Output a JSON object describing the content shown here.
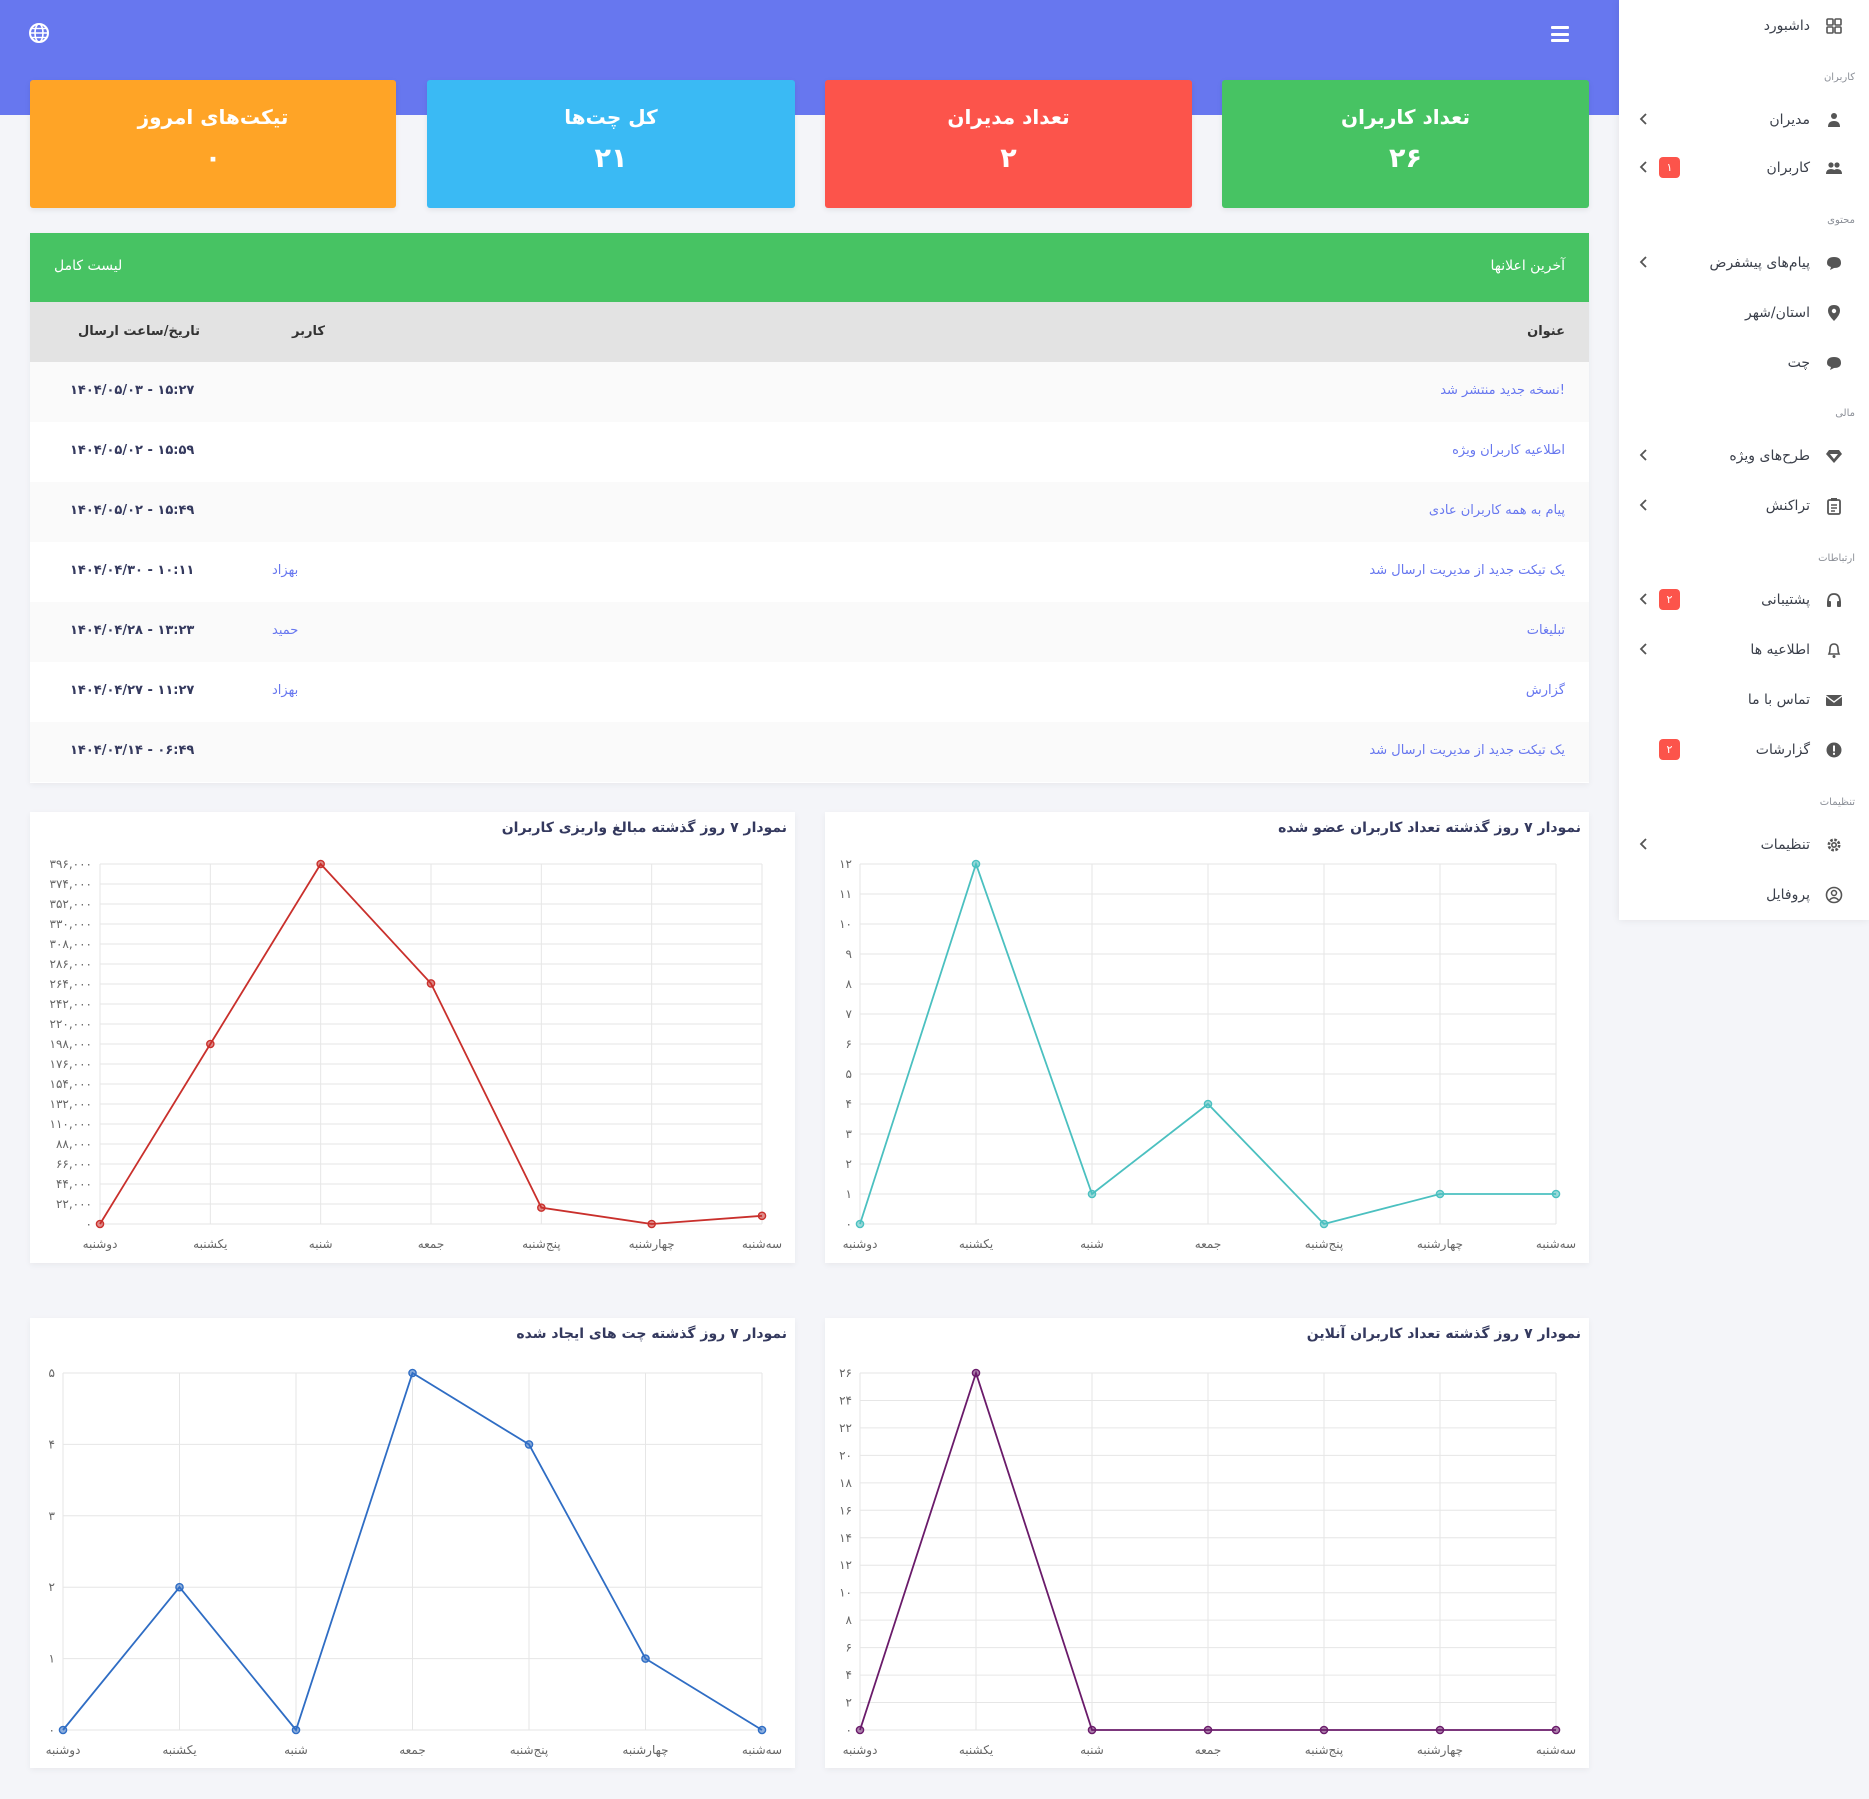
{
  "cards": [
    {
      "title": "تیکت‌های امروز",
      "value": "۰"
    },
    {
      "title": "کل چت‌ها",
      "value": "۲۱"
    },
    {
      "title": "تعداد مدیران",
      "value": "۲"
    },
    {
      "title": "تعداد کاربران",
      "value": "۲۶"
    }
  ],
  "announcements": {
    "title": "آخرین اعلانها",
    "full_list_label": "لیست کامل",
    "columns": {
      "title": "عنوان",
      "user": "کاربر",
      "date": "تاریخ/ساعت ارسال"
    },
    "rows": [
      {
        "title": "نسخه جدید منتشر شد!",
        "user": "",
        "date": "۱۴۰۴/۰۵/۰۳ - ۱۵:۲۷"
      },
      {
        "title": "اطلاعیه کاربران ویژه",
        "user": "",
        "date": "۱۴۰۴/۰۵/۰۲ - ۱۵:۵۹"
      },
      {
        "title": "پیام به همه کاربران عادی",
        "user": "",
        "date": "۱۴۰۴/۰۵/۰۲ - ۱۵:۴۹"
      },
      {
        "title": "یک تیکت جدید از مدیریت ارسال شد",
        "user": "بهزاد",
        "date": "۱۴۰۴/۰۴/۳۰ - ۱۰:۱۱"
      },
      {
        "title": "تبلیغات",
        "user": "حمید",
        "date": "۱۴۰۴/۰۴/۲۸ - ۱۳:۲۳"
      },
      {
        "title": "گزارش",
        "user": "بهزاد",
        "date": "۱۴۰۴/۰۴/۲۷ - ۱۱:۲۷"
      },
      {
        "title": "یک تیکت جدید از مدیریت ارسال شد",
        "user": "",
        "date": "۱۴۰۴/۰۳/۱۴ - ۰۶:۴۹"
      }
    ]
  },
  "chart_data": [
    {
      "type": "line",
      "title": "نمودار ۷ روز گذشته مبالغ واریزی کاربران",
      "categories": [
        "دوشنبه",
        "یکشنبه",
        "شنبه",
        "جمعه",
        "پنج‌شنبه",
        "چهارشنبه",
        "سه‌شنبه"
      ],
      "values": [
        0,
        220000,
        440000,
        294000,
        20000,
        0,
        10000
      ],
      "y_ticks": [
        "۰",
        "۲۲,۰۰۰",
        "۴۴,۰۰۰",
        "۶۶,۰۰۰",
        "۸۸,۰۰۰",
        "۱۱۰,۰۰۰",
        "۱۳۲,۰۰۰",
        "۱۵۴,۰۰۰",
        "۱۷۶,۰۰۰",
        "۱۹۸,۰۰۰",
        "۲۲۰,۰۰۰",
        "۲۴۲,۰۰۰",
        "۲۶۴,۰۰۰",
        "۲۸۶,۰۰۰",
        "۳۰۸,۰۰۰",
        "۳۳۰,۰۰۰",
        "۳۵۲,۰۰۰",
        "۳۷۴,۰۰۰",
        "۳۹۶,۰۰۰"
      ],
      "ylim": [
        0,
        440000
      ],
      "color": "#c9302c",
      "grid": true
    },
    {
      "type": "line",
      "title": "نمودار ۷ روز گذشته تعداد کاربران عضو شده",
      "categories": [
        "دوشنبه",
        "یکشنبه",
        "شنبه",
        "جمعه",
        "پنج‌شنبه",
        "چهارشنبه",
        "سه‌شنبه"
      ],
      "values": [
        0,
        12,
        1,
        4,
        0,
        1,
        1
      ],
      "y_ticks": [
        "۰",
        "۱",
        "۲",
        "۳",
        "۴",
        "۵",
        "۶",
        "۷",
        "۸",
        "۹",
        "۱۰",
        "۱۱",
        "۱۲"
      ],
      "ylim": [
        0,
        12
      ],
      "color": "#4bc0c0",
      "grid": true
    },
    {
      "type": "line",
      "title": "نمودار ۷ روز گذشته چت های ایجاد شده",
      "categories": [
        "دوشنبه",
        "یکشنبه",
        "شنبه",
        "جمعه",
        "پنج‌شنبه",
        "چهارشنبه",
        "سه‌شنبه"
      ],
      "values": [
        0,
        2,
        0,
        5,
        4,
        1,
        0
      ],
      "y_ticks": [
        "۰",
        "۱",
        "۲",
        "۳",
        "۴",
        "۵"
      ],
      "ylim": [
        0,
        5
      ],
      "color": "#2f6dc4",
      "grid": true
    },
    {
      "type": "line",
      "title": "نمودار ۷ روز گذشته تعداد کاربران آنلاین",
      "categories": [
        "دوشنبه",
        "یکشنبه",
        "شنبه",
        "جمعه",
        "پنج‌شنبه",
        "چهارشنبه",
        "سه‌شنبه"
      ],
      "values": [
        0,
        26,
        0,
        0,
        0,
        0,
        0
      ],
      "y_ticks": [
        "۰",
        "۲",
        "۴",
        "۶",
        "۸",
        "۱۰",
        "۱۲",
        "۱۴",
        "۱۶",
        "۱۸",
        "۲۰",
        "۲۲",
        "۲۴",
        "۲۶"
      ],
      "ylim": [
        0,
        26
      ],
      "color": "#6a1b6a",
      "grid": true
    }
  ],
  "sidebar": {
    "items": [
      {
        "id": "dashboard",
        "label": "داشبورد",
        "icon": "dashboard-icon",
        "chevron": false,
        "badge": ""
      },
      {
        "id": "admins",
        "label": "مدیران",
        "icon": "admins-icon",
        "chevron": true,
        "badge": ""
      },
      {
        "id": "users",
        "label": "کاربران",
        "icon": "users-icon",
        "chevron": true,
        "badge": "۱"
      },
      {
        "id": "default-messages",
        "label": "پیام‌های پیشفرض",
        "icon": "chat-bubble-icon",
        "chevron": true,
        "badge": ""
      },
      {
        "id": "province",
        "label": "استان/شهر",
        "icon": "map-pin-icon",
        "chevron": false,
        "badge": ""
      },
      {
        "id": "chat",
        "label": "چت",
        "icon": "chat-icon",
        "chevron": false,
        "badge": ""
      },
      {
        "id": "premium-plans",
        "label": "طرح‌های ویژه",
        "icon": "diamond-icon",
        "chevron": true,
        "badge": ""
      },
      {
        "id": "transactions",
        "label": "تراکنش",
        "icon": "clipboard-icon",
        "chevron": true,
        "badge": ""
      },
      {
        "id": "support",
        "label": "پشتیبانی",
        "icon": "headset-icon",
        "chevron": true,
        "badge": "۲"
      },
      {
        "id": "notifications",
        "label": "اطلاعیه ها",
        "icon": "bell-icon",
        "chevron": true,
        "badge": ""
      },
      {
        "id": "contact",
        "label": "تماس با ما",
        "icon": "envelope-icon",
        "chevron": false,
        "badge": ""
      },
      {
        "id": "reports",
        "label": "گزارشات",
        "icon": "alert-circle-icon",
        "chevron": false,
        "badge": "۲"
      },
      {
        "id": "settings",
        "label": "تنظیمات",
        "icon": "gear-icon",
        "chevron": true,
        "badge": ""
      },
      {
        "id": "profile",
        "label": "پروفایل",
        "icon": "user-circle-icon",
        "chevron": false,
        "badge": ""
      }
    ],
    "headings": [
      "کاربران",
      "محتوی",
      "مالی",
      "ارتباطات",
      "تنظیمات"
    ]
  }
}
